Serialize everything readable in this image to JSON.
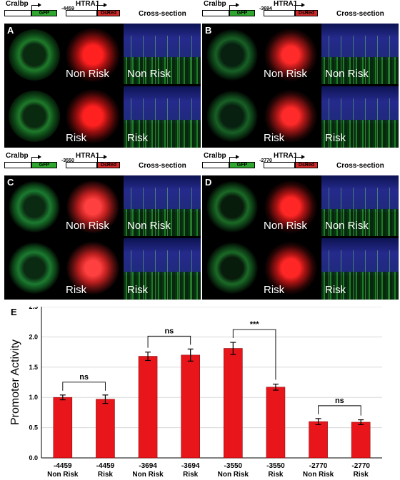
{
  "panels": [
    {
      "letter": "A",
      "gene1": "Cralbp",
      "gene2": "HTRA1",
      "position": "-4459",
      "reporter1": "GFP",
      "reporter2": "DsRed",
      "section": "Cross-section",
      "cap_nonrisk": "Non Risk",
      "cap_risk": "Risk"
    },
    {
      "letter": "B",
      "gene1": "Cralbp",
      "gene2": "HTRA1",
      "position": "-3694",
      "reporter1": "GFP",
      "reporter2": "DsRed",
      "section": "Cross-section",
      "cap_nonrisk": "Non Risk",
      "cap_risk": "Risk"
    },
    {
      "letter": "C",
      "gene1": "Cralbp",
      "gene2": "HTRA1",
      "position": "-3550",
      "reporter1": "GFP",
      "reporter2": "DsRed",
      "section": "Cross-section",
      "cap_nonrisk": "Non Risk",
      "cap_risk": "Risk"
    },
    {
      "letter": "D",
      "gene1": "Cralbp",
      "gene2": "HTRA1",
      "position": "-2770",
      "reporter1": "GFP",
      "reporter2": "DsRed",
      "section": "Cross-section",
      "cap_nonrisk": "Non Risk",
      "cap_risk": "Risk"
    }
  ],
  "chart_letter": "E",
  "chart_data": {
    "type": "bar",
    "ylabel": "Promoter Activity",
    "ylim": [
      0,
      2.5
    ],
    "yticks": [
      "0.0",
      "0.5",
      "1.0",
      "1.5",
      "2.0",
      "2.5"
    ],
    "categories": [
      [
        "-4459",
        "Non Risk"
      ],
      [
        "-4459",
        "Risk"
      ],
      [
        "-3694",
        "Non Risk"
      ],
      [
        "-3694",
        "Risk"
      ],
      [
        "-3550",
        "Non Risk"
      ],
      [
        "-3550",
        "Risk"
      ],
      [
        "-2770",
        "Non Risk"
      ],
      [
        "-2770",
        "Risk"
      ]
    ],
    "values": [
      1.0,
      0.97,
      1.68,
      1.7,
      1.81,
      1.17,
      0.6,
      0.59
    ],
    "errors": [
      0.04,
      0.07,
      0.07,
      0.1,
      0.1,
      0.05,
      0.05,
      0.04
    ],
    "bar_color": "#e8161b",
    "significance": [
      {
        "from": 0,
        "to": 1,
        "label": "ns"
      },
      {
        "from": 2,
        "to": 3,
        "label": "ns"
      },
      {
        "from": 4,
        "to": 5,
        "label": "***"
      },
      {
        "from": 6,
        "to": 7,
        "label": "ns"
      }
    ],
    "grid": true
  }
}
